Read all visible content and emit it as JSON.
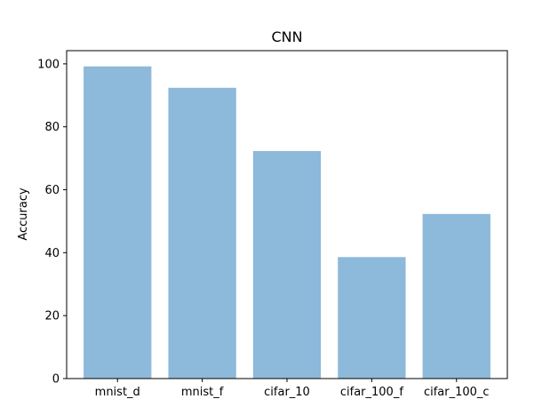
{
  "chart_data": {
    "type": "bar",
    "title": "CNN",
    "xlabel": "",
    "ylabel": "Accuracy",
    "categories": [
      "mnist_d",
      "mnist_f",
      "cifar_10",
      "cifar_100_f",
      "cifar_100_c"
    ],
    "values": [
      99.2,
      92.4,
      72.3,
      38.6,
      52.3
    ],
    "ylim": [
      0,
      104.2
    ],
    "yticks": [
      0,
      20,
      40,
      60,
      80,
      100
    ],
    "bar_color": "#8db9da",
    "grid": false,
    "legend": "none"
  }
}
